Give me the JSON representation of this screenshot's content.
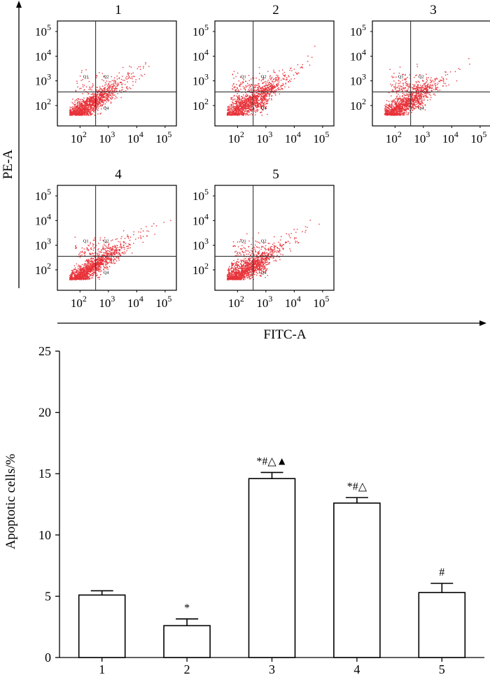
{
  "figure": {
    "flow_axes": {
      "y_label": "PE-A",
      "x_label": "FITC-A"
    },
    "flow_panels": [
      {
        "label": "1",
        "seed": 11,
        "spread": 0.55,
        "upper": 0.04,
        "dense": 0.0
      },
      {
        "label": "2",
        "seed": 23,
        "spread": 0.65,
        "upper": 0.1,
        "dense": 0.55
      },
      {
        "label": "3",
        "seed": 37,
        "spread": 0.55,
        "upper": 0.12,
        "dense": 0.2
      },
      {
        "label": "4",
        "seed": 41,
        "spread": 0.6,
        "upper": 0.08,
        "dense": 0.0
      },
      {
        "label": "5",
        "seed": 53,
        "spread": 0.6,
        "upper": 0.08,
        "dense": 0.45
      }
    ],
    "flow_ticks": {
      "x": [
        {
          "base": "10",
          "exp": "2"
        },
        {
          "base": "10",
          "exp": "3"
        },
        {
          "base": "10",
          "exp": "4"
        },
        {
          "base": "10",
          "exp": "5"
        }
      ],
      "y": [
        {
          "base": "10",
          "exp": "2"
        },
        {
          "base": "10",
          "exp": "3"
        },
        {
          "base": "10",
          "exp": "4"
        },
        {
          "base": "10",
          "exp": "5"
        }
      ]
    },
    "quadrant_labels": [
      "Q1",
      "Q2",
      "Q4"
    ],
    "dot_color": "#e8333a"
  },
  "chart_data": {
    "type": "bar",
    "title": "",
    "xlabel": "",
    "ylabel": "Apoptotic cells/%",
    "ylim": [
      0,
      25
    ],
    "yticks": [
      0,
      5,
      10,
      15,
      20,
      25
    ],
    "categories": [
      "1",
      "2",
      "3",
      "4",
      "5"
    ],
    "values": [
      5.1,
      2.6,
      14.6,
      12.6,
      5.3
    ],
    "errors": [
      0.35,
      0.55,
      0.5,
      0.45,
      0.75
    ],
    "annotations": [
      "",
      "*",
      "*#△▲",
      "*#△",
      "#"
    ]
  }
}
